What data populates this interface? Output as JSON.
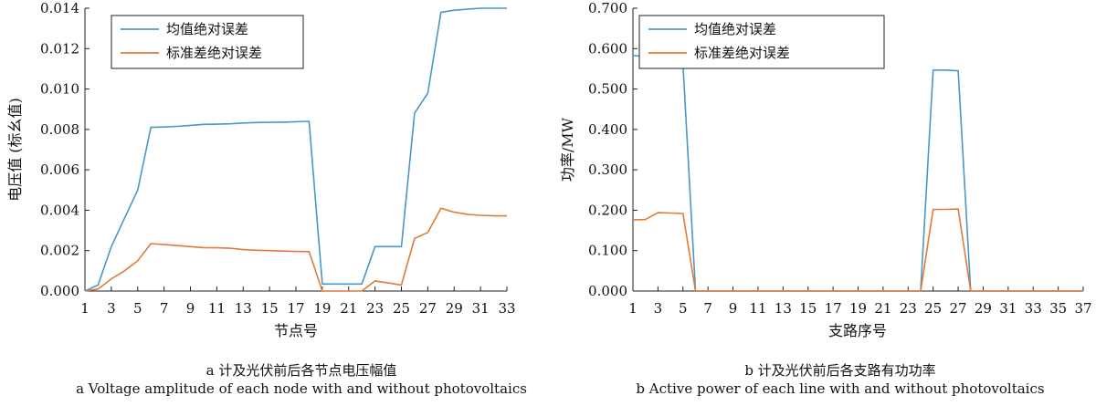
{
  "colors": {
    "mean": "#4a97c9",
    "std": "#e07b39",
    "axis": "#222222"
  },
  "chart_data": [
    {
      "type": "line",
      "xlabel": "节点号",
      "ylabel": "电压值 (标幺值)",
      "xlim": [
        1,
        33
      ],
      "ylim": [
        0,
        0.014
      ],
      "xticks": [
        "1",
        "3",
        "5",
        "7",
        "9",
        "11",
        "13",
        "15",
        "17",
        "19",
        "21",
        "23",
        "25",
        "27",
        "29",
        "31",
        "33"
      ],
      "yticks": [
        "0.000",
        "0.002",
        "0.004",
        "0.006",
        "0.008",
        "0.010",
        "0.012",
        "0.014"
      ],
      "legend_position": "top-left",
      "x": [
        1,
        2,
        3,
        4,
        5,
        6,
        7,
        8,
        9,
        10,
        11,
        12,
        13,
        14,
        15,
        16,
        17,
        18,
        19,
        20,
        21,
        22,
        23,
        24,
        25,
        26,
        27,
        28,
        29,
        30,
        31,
        32,
        33
      ],
      "series": [
        {
          "name": "均值绝对误差",
          "values": [
            0.0,
            0.0003,
            0.0022,
            0.0036,
            0.005,
            0.0081,
            0.00812,
            0.00815,
            0.0082,
            0.00825,
            0.00826,
            0.00828,
            0.00832,
            0.00834,
            0.00835,
            0.00836,
            0.00838,
            0.0084,
            0.00035,
            0.00035,
            0.00035,
            0.00035,
            0.0022,
            0.0022,
            0.0022,
            0.0088,
            0.0098,
            0.0138,
            0.0139,
            0.01395,
            0.014,
            0.014,
            0.014
          ]
        },
        {
          "name": "标准差绝对误差",
          "values": [
            0.0,
            0.0001,
            0.0006,
            0.001,
            0.0015,
            0.00235,
            0.0023,
            0.00225,
            0.0022,
            0.00215,
            0.00214,
            0.00212,
            0.00205,
            0.00202,
            0.002,
            0.00198,
            0.00196,
            0.00195,
            0.0,
            0.0,
            0.0,
            0.0,
            0.0005,
            0.0004,
            0.0003,
            0.0026,
            0.0029,
            0.0041,
            0.0039,
            0.0038,
            0.00375,
            0.00372,
            0.00372
          ]
        }
      ],
      "caption_cn": "a 计及光伏前后各节点电压幅值",
      "caption_en": "a Voltage amplitude of each node with and without photovoltaics"
    },
    {
      "type": "line",
      "xlabel": "支路序号",
      "ylabel": "功率/MW",
      "xlim": [
        1,
        37
      ],
      "ylim": [
        0,
        0.7
      ],
      "xticks": [
        "1",
        "3",
        "5",
        "7",
        "9",
        "11",
        "13",
        "15",
        "17",
        "19",
        "21",
        "23",
        "25",
        "27",
        "29",
        "31",
        "33",
        "35",
        "37"
      ],
      "yticks": [
        "0.000",
        "0.100",
        "0.200",
        "0.300",
        "0.400",
        "0.500",
        "0.600",
        "0.700"
      ],
      "legend_position": "top-center",
      "x": [
        1,
        2,
        3,
        4,
        5,
        6,
        7,
        8,
        9,
        10,
        11,
        12,
        13,
        14,
        15,
        16,
        17,
        18,
        19,
        20,
        21,
        22,
        23,
        24,
        25,
        26,
        27,
        28,
        29,
        30,
        31,
        32,
        33,
        34,
        35,
        36,
        37
      ],
      "series": [
        {
          "name": "均值绝对误差",
          "values": [
            0.583,
            0.58,
            0.57,
            0.565,
            0.56,
            0,
            0,
            0,
            0,
            0,
            0,
            0,
            0,
            0,
            0,
            0,
            0,
            0,
            0,
            0,
            0,
            0,
            0,
            0,
            0.547,
            0.547,
            0.545,
            0,
            0,
            0,
            0,
            0,
            0,
            0,
            0,
            0,
            0
          ]
        },
        {
          "name": "标准差绝对误差",
          "values": [
            0.176,
            0.177,
            0.194,
            0.193,
            0.192,
            0,
            0,
            0,
            0,
            0,
            0,
            0,
            0,
            0,
            0,
            0,
            0,
            0,
            0,
            0,
            0,
            0,
            0,
            0,
            0.202,
            0.202,
            0.203,
            0,
            0,
            0,
            0,
            0,
            0,
            0,
            0,
            0,
            0
          ]
        }
      ],
      "caption_cn": "b 计及光伏前后各支路有功功率",
      "caption_en": "b Active power of each line with and without photovoltaics"
    }
  ]
}
